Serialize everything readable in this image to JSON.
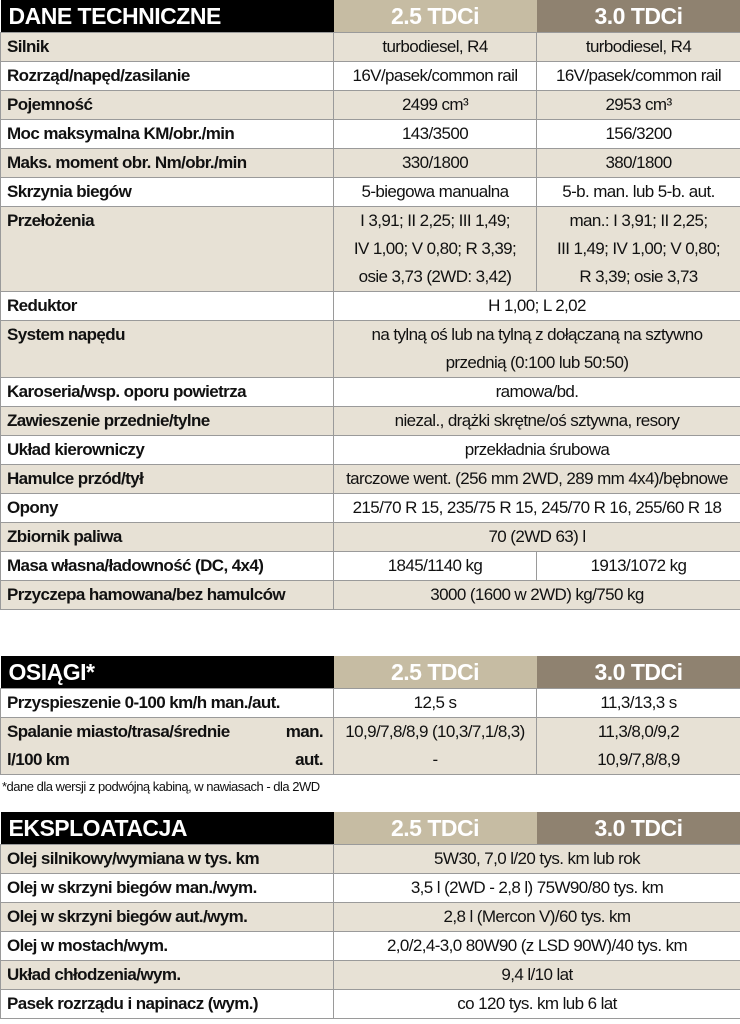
{
  "sections": [
    {
      "title": "DANE TECHNICZNE",
      "col_a": "2.5 TDCi",
      "col_b": "3.0 TDCi",
      "rows": [
        {
          "label": "Silnik",
          "values": [
            "turbodiesel, R4",
            "turbodiesel, R4"
          ]
        },
        {
          "label": "Rozrząd/napęd/zasilanie",
          "values": [
            "16V/pasek/common rail",
            "16V/pasek/common rail"
          ]
        },
        {
          "label": "Pojemność",
          "values": [
            "2499 cm³",
            "2953 cm³"
          ]
        },
        {
          "label": "Moc maksymalna KM/obr./min",
          "values": [
            "143/3500",
            "156/3200"
          ]
        },
        {
          "label": "Maks. moment obr. Nm/obr./min",
          "values": [
            "330/1800",
            "380/1800"
          ]
        },
        {
          "label": "Skrzynia biegów",
          "values": [
            "5-biegowa manualna",
            "5-b. man. lub 5-b. aut."
          ]
        },
        {
          "label": "Przełożenia",
          "values": [
            "I 3,91; II 2,25; III 1,49;\nIV 1,00; V 0,80; R 3,39;\nosie 3,73 (2WD: 3,42)",
            "man.: I 3,91; II 2,25;\nIII 1,49; IV 1,00; V 0,80;\nR 3,39; osie 3,73"
          ]
        },
        {
          "label": "Reduktor",
          "values": [
            "H 1,00; L 2,02"
          ]
        },
        {
          "label": "System napędu",
          "values": [
            "na tylną oś lub na tylną z dołączaną na sztywno\nprzednią (0:100 lub 50:50)"
          ]
        },
        {
          "label": "Karoseria/wsp. oporu powietrza",
          "values": [
            "ramowa/bd."
          ]
        },
        {
          "label": "Zawieszenie przednie/tylne",
          "values": [
            "niezal., drążki skrętne/oś sztywna, resory"
          ]
        },
        {
          "label": "Układ kierowniczy",
          "values": [
            "przekładnia śrubowa"
          ]
        },
        {
          "label": "Hamulce przód/tył",
          "values": [
            "tarczowe went. (256 mm 2WD, 289 mm 4x4)/bębnowe"
          ]
        },
        {
          "label": "Opony",
          "values": [
            "215/70 R 15, 235/75 R 15, 245/70 R 16, 255/60 R 18"
          ]
        },
        {
          "label": "Zbiornik paliwa",
          "values": [
            "70 (2WD 63) l"
          ]
        },
        {
          "label": "Masa własna/ładowność (DC, 4x4)",
          "values": [
            "1845/1140 kg",
            "1913/1072 kg"
          ]
        },
        {
          "label": "Przyczepa hamowana/bez hamulców",
          "values": [
            "3000 (1600 w 2WD) kg/750 kg"
          ]
        }
      ]
    },
    {
      "title": "OSIĄGI*",
      "col_a": "2.5 TDCi",
      "col_b": "3.0 TDCi",
      "rows": [
        {
          "label": "Przyspieszenie 0-100 km/h man./aut.",
          "values": [
            "12,5 s",
            "11,3/13,3 s"
          ]
        },
        {
          "label": "Spalanie miasto/trasa/średnie\nl/100 km",
          "sublabel": "man.\naut.",
          "values": [
            "10,9/7,8/8,9 (10,3/7,1/8,3)\n-",
            "11,3/8,0/9,2\n10,9/7,8/8,9"
          ]
        }
      ],
      "footnote": "*dane dla wersji z podwójną kabiną, w nawiasach - dla 2WD"
    },
    {
      "title": "EKSPLOATACJA",
      "col_a": "2.5 TDCi",
      "col_b": "3.0 TDCi",
      "rows": [
        {
          "label": "Olej silnikowy/wymiana w tys. km",
          "values": [
            "5W30, 7,0 l/20 tys. km lub rok"
          ]
        },
        {
          "label": "Olej w skrzyni biegów man./wym.",
          "values": [
            "3,5 l (2WD - 2,8 l) 75W90/80 tys. km"
          ]
        },
        {
          "label": "Olej w skrzyni biegów aut./wym.",
          "values": [
            "2,8 l (Mercon V)/60 tys. km"
          ]
        },
        {
          "label": "Olej w mostach/wym.",
          "values": [
            "2,0/2,4-3,0 80W90 (z LSD 90W)/40 tys. km"
          ]
        },
        {
          "label": "Układ chłodzenia/wym.",
          "values": [
            "9,4 l/10 lat"
          ]
        },
        {
          "label": "Pasek rozrządu i napinacz (wym.)",
          "values": [
            "co 120 tys. km lub 6 lat"
          ]
        }
      ]
    }
  ],
  "colors": {
    "header_black": "#000000",
    "col_a": "#c6bca3",
    "col_b": "#8f8270",
    "row_alt": "#e7e1d5"
  }
}
